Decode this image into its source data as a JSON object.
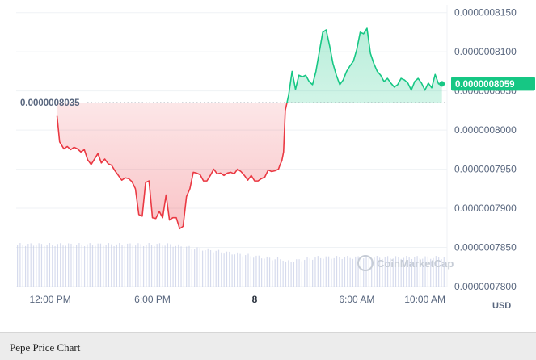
{
  "caption": "Pepe Price Chart",
  "currency": "USD",
  "watermark": "CoinMarketCap",
  "colors": {
    "up": "#16c784",
    "down": "#ea3943",
    "grid": "#eff2f5",
    "volume": "#c5cce6",
    "reference": "#8a939f"
  },
  "chart_data": {
    "type": "area",
    "x_ticks": [
      "12:00 PM",
      "6:00 PM",
      "8",
      "6:00 AM",
      "10:00 AM"
    ],
    "x_tick_hours": [
      0,
      6,
      12,
      18,
      22
    ],
    "x_range_hours": [
      -2,
      23.3
    ],
    "y_ticks": [
      "0.0000008150",
      "0.0000008100",
      "0.0000008050",
      "0.0000008000",
      "0.0000007950",
      "0.0000007900",
      "0.0000007850",
      "0.0000007800"
    ],
    "ylim": [
      7.8e-07,
      8.16e-07
    ],
    "reference_value": "0.0000008035",
    "reference_price": 8.035e-07,
    "current_price_label": "0.0000008059",
    "current_price": 8.059e-07,
    "series": [
      {
        "x_hours": [
          0.4,
          0.55,
          0.8,
          1.0,
          1.2,
          1.4,
          1.6,
          1.8,
          2.0,
          2.2,
          2.4,
          2.6,
          2.8,
          3.0,
          3.2,
          3.4,
          3.6,
          3.8,
          4.0,
          4.2,
          4.4,
          4.6,
          4.8,
          5.0,
          5.2,
          5.4,
          5.6,
          5.8,
          6.0,
          6.2,
          6.4,
          6.6,
          6.8,
          7.0,
          7.2,
          7.4,
          7.6,
          7.8,
          8.0,
          8.2,
          8.4,
          8.6,
          8.8,
          9.0,
          9.2,
          9.4,
          9.6,
          9.8,
          10.0,
          10.2,
          10.4,
          10.6,
          10.8,
          11.0,
          11.2,
          11.4,
          11.6,
          11.8,
          12.0,
          12.2,
          12.4,
          12.6,
          12.8,
          13.0,
          13.2,
          13.4,
          13.5,
          13.6,
          13.7,
          13.8,
          14.0,
          14.2,
          14.4,
          14.6,
          14.8,
          15.0,
          15.2,
          15.4,
          15.6,
          15.8,
          16.0,
          16.2,
          16.4,
          16.6,
          16.8,
          17.0,
          17.2,
          17.4,
          17.6,
          17.8,
          18.0,
          18.2,
          18.4,
          18.6,
          18.8,
          19.0,
          19.2,
          19.4,
          19.6,
          19.8,
          20.0,
          20.2,
          20.4,
          20.6,
          20.8,
          21.0,
          21.2,
          21.4,
          21.6,
          21.8,
          22.0,
          22.2,
          22.4,
          22.6,
          22.8,
          23.0
        ],
        "values": [
          8.018e-07,
          7.985e-07,
          7.976e-07,
          7.979e-07,
          7.975e-07,
          7.978e-07,
          7.976e-07,
          7.972e-07,
          7.975e-07,
          7.962e-07,
          7.956e-07,
          7.963e-07,
          7.97e-07,
          7.958e-07,
          7.963e-07,
          7.957e-07,
          7.955e-07,
          7.948e-07,
          7.942e-07,
          7.936e-07,
          7.939e-07,
          7.938e-07,
          7.934e-07,
          7.925e-07,
          7.892e-07,
          7.89e-07,
          7.933e-07,
          7.935e-07,
          7.888e-07,
          7.887e-07,
          7.896e-07,
          7.888e-07,
          7.917e-07,
          7.885e-07,
          7.888e-07,
          7.888e-07,
          7.874e-07,
          7.877e-07,
          7.915e-07,
          7.925e-07,
          7.946e-07,
          7.945e-07,
          7.943e-07,
          7.935e-07,
          7.935e-07,
          7.942e-07,
          7.95e-07,
          7.944e-07,
          7.945e-07,
          7.942e-07,
          7.945e-07,
          7.946e-07,
          7.944e-07,
          7.95e-07,
          7.947e-07,
          7.942e-07,
          7.936e-07,
          7.942e-07,
          7.935e-07,
          7.935e-07,
          7.938e-07,
          7.94e-07,
          7.949e-07,
          7.947e-07,
          7.948e-07,
          7.95e-07,
          7.956e-07,
          7.961e-07,
          7.972e-07,
          8.025e-07,
          8.045e-07,
          8.075e-07,
          8.052e-07,
          8.07e-07,
          8.068e-07,
          8.07e-07,
          8.062e-07,
          8.058e-07,
          8.075e-07,
          8.1e-07,
          8.125e-07,
          8.128e-07,
          8.108e-07,
          8.085e-07,
          8.07e-07,
          8.058e-07,
          8.064e-07,
          8.075e-07,
          8.082e-07,
          8.088e-07,
          8.103e-07,
          8.125e-07,
          8.123e-07,
          8.13e-07,
          8.098e-07,
          8.085e-07,
          8.075e-07,
          8.07e-07,
          8.062e-07,
          8.066e-07,
          8.06e-07,
          8.055e-07,
          8.058e-07,
          8.066e-07,
          8.064e-07,
          8.06e-07,
          8.051e-07,
          8.062e-07,
          8.066e-07,
          8.06e-07,
          8.051e-07,
          8.06e-07,
          8.054e-07,
          8.071e-07,
          8.059e-07,
          8.059e-07
        ]
      }
    ]
  }
}
